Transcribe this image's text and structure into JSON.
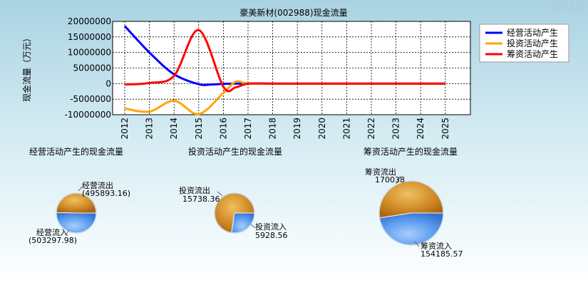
{
  "watermark": "CFi.Cn",
  "colors": {
    "operating": "#0000ff",
    "investing": "#ffa500",
    "financing": "#ff0000",
    "pie_outflow": "#d4902a",
    "pie_inflow": "#5596ee"
  },
  "chart_data": [
    {
      "type": "line",
      "title": "豪美新材(002988)现金流量",
      "ylabel": "现金流量（万元）",
      "xlabel": "",
      "x": [
        "2012",
        "2013",
        "2014",
        "2015",
        "2016",
        "2017",
        "2018",
        "2019",
        "2020",
        "2021",
        "2022",
        "2023",
        "2024",
        "2025"
      ],
      "ylim": [
        -10000000,
        20000000
      ],
      "yticks": [
        20000000,
        15000000,
        10000000,
        5000000,
        0,
        -5000000,
        -10000000
      ],
      "ytick_labels": [
        "20000000",
        "15000000",
        "10000000",
        "5000000",
        "0",
        "-5000000",
        "-10000000"
      ],
      "grid": true,
      "legend_position": "top-right",
      "series": [
        {
          "name": "经营活动产生",
          "color": "#0000ff",
          "points": [
            [
              2012,
              18500000
            ],
            [
              2013,
              10000000
            ],
            [
              2014,
              3000000
            ],
            [
              2015,
              -200000
            ],
            [
              2015.5,
              -300000
            ],
            [
              2016,
              -100000
            ],
            [
              2016.5,
              0
            ],
            [
              2017,
              0
            ],
            [
              2018,
              0
            ],
            [
              2019,
              0
            ],
            [
              2020,
              0
            ],
            [
              2021,
              0
            ],
            [
              2022,
              0
            ],
            [
              2023,
              0
            ],
            [
              2024,
              0
            ],
            [
              2025,
              0
            ]
          ]
        },
        {
          "name": "投资活动产生",
          "color": "#ffa500",
          "points": [
            [
              2012,
              -8000000
            ],
            [
              2013,
              -9000000
            ],
            [
              2014,
              -5500000
            ],
            [
              2015,
              -9800000
            ],
            [
              2016,
              -3000000
            ],
            [
              2016.5,
              600000
            ],
            [
              2017,
              0
            ],
            [
              2018,
              0
            ],
            [
              2019,
              0
            ],
            [
              2020,
              0
            ],
            [
              2021,
              0
            ],
            [
              2022,
              0
            ],
            [
              2023,
              0
            ],
            [
              2024,
              0
            ],
            [
              2025,
              0
            ]
          ]
        },
        {
          "name": "筹资活动产生",
          "color": "#ff0000",
          "points": [
            [
              2012,
              -300000
            ],
            [
              2013,
              200000
            ],
            [
              2014,
              2500000
            ],
            [
              2015,
              17200000
            ],
            [
              2016,
              -1000000
            ],
            [
              2016.5,
              -1200000
            ],
            [
              2017,
              0
            ],
            [
              2018,
              0
            ],
            [
              2019,
              0
            ],
            [
              2020,
              0
            ],
            [
              2021,
              0
            ],
            [
              2022,
              0
            ],
            [
              2023,
              0
            ],
            [
              2024,
              0
            ],
            [
              2025,
              0
            ]
          ]
        }
      ]
    },
    {
      "type": "pie",
      "title": "经营活动产生的现金流量",
      "slices": [
        {
          "name": "经营流出",
          "value": 495893.16,
          "display": "(495893.16)"
        },
        {
          "name": "经营流入",
          "value": 503297.98,
          "display": "(503297.98)"
        }
      ]
    },
    {
      "type": "pie",
      "title": "投资活动产生的现金流量",
      "slices": [
        {
          "name": "投资流出",
          "value": 15738.36,
          "display": "15738.36"
        },
        {
          "name": "投资流入",
          "value": 5928.56,
          "display": "5928.56"
        }
      ]
    },
    {
      "type": "pie",
      "title": "筹资活动产生的现金流量",
      "slices": [
        {
          "name": "筹资流出",
          "value": 170038,
          "display": "170038"
        },
        {
          "name": "筹资流入",
          "value": 154185.57,
          "display": "154185.57"
        }
      ]
    }
  ]
}
